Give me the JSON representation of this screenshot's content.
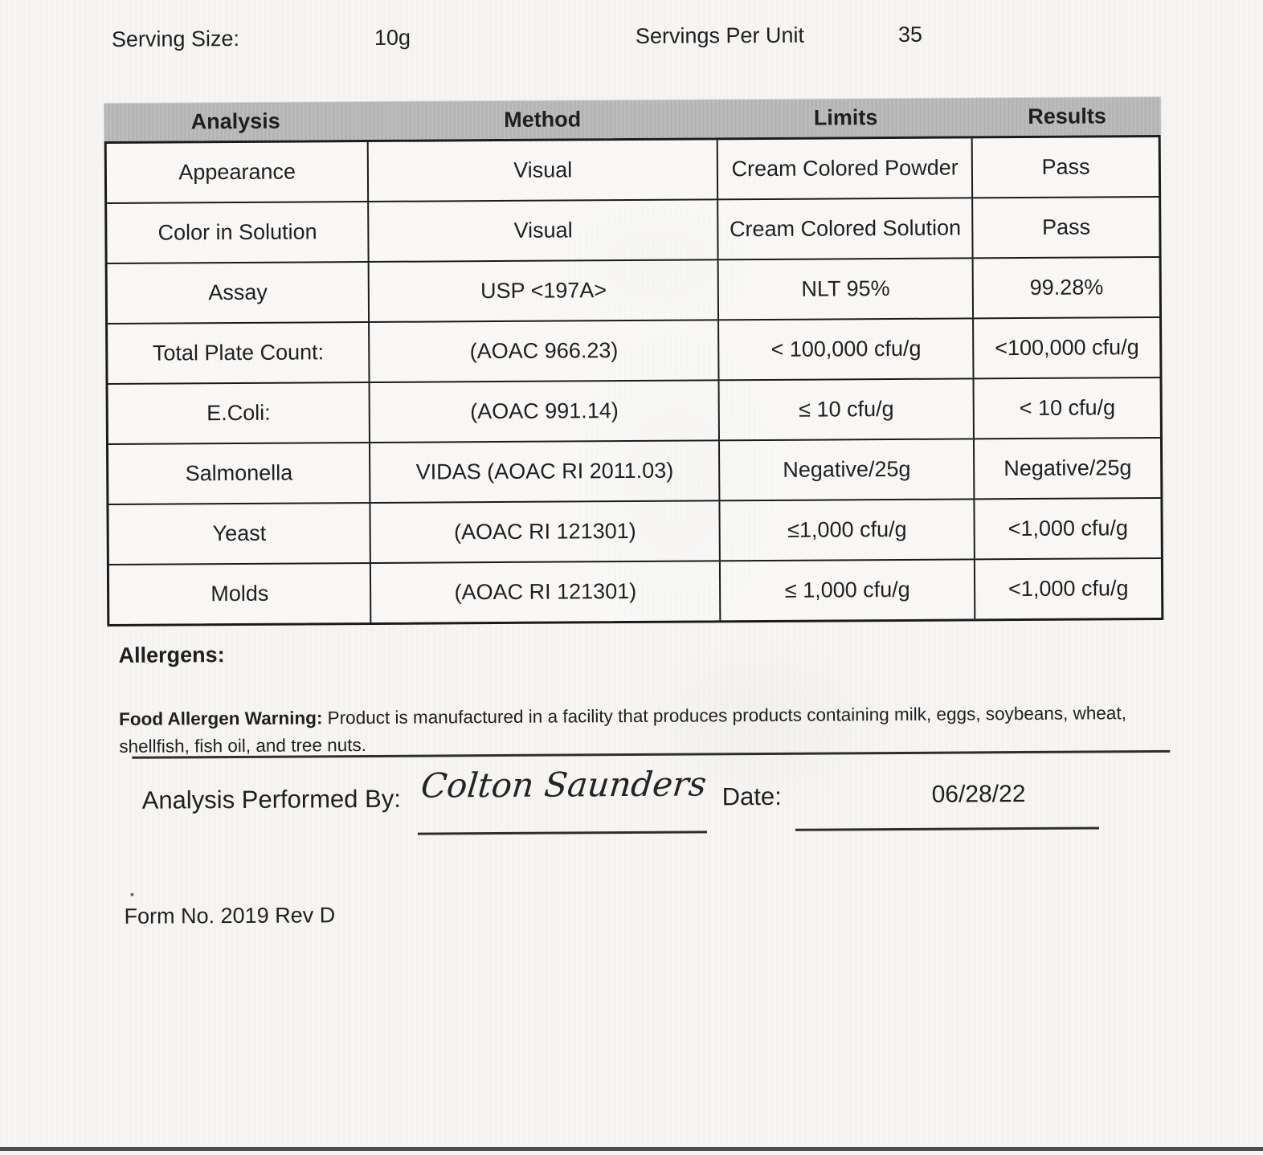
{
  "top": {
    "serving_size_label": "Serving Size:",
    "serving_size_value": "10g",
    "servings_per_unit_label": "Servings Per Unit",
    "servings_per_unit_value": "35"
  },
  "table": {
    "headers": [
      "Analysis",
      "Method",
      "Limits",
      "Results"
    ],
    "rows": [
      [
        "Appearance",
        "Visual",
        "Cream Colored Powder",
        "Pass"
      ],
      [
        "Color in Solution",
        "Visual",
        "Cream Colored Solution",
        "Pass"
      ],
      [
        "Assay",
        "USP <197A>",
        "NLT 95%",
        "99.28%"
      ],
      [
        "Total Plate Count:",
        "(AOAC 966.23)",
        "< 100,000 cfu/g",
        "<100,000 cfu/g"
      ],
      [
        "E.Coli:",
        "(AOAC 991.14)",
        "≤ 10 cfu/g",
        "< 10 cfu/g"
      ],
      [
        "Salmonella",
        "VIDAS (AOAC RI 2011.03)",
        "Negative/25g",
        "Negative/25g"
      ],
      [
        "Yeast",
        "(AOAC RI 121301)",
        "≤1,000 cfu/g",
        "<1,000 cfu/g"
      ],
      [
        "Molds",
        "(AOAC RI 121301)",
        "≤ 1,000 cfu/g",
        "<1,000 cfu/g"
      ]
    ]
  },
  "allergens": {
    "heading": "Allergens:",
    "warning_label": "Food Allergen Warning:",
    "warning_text": " Product is manufactured in a facility that produces products containing milk, eggs, soybeans, wheat, shellfish, fish oil, and tree nuts."
  },
  "signature": {
    "performed_by_label": "Analysis Performed By:",
    "performed_by_value": "Colton Saunders",
    "date_label": "Date:",
    "date_value": "06/28/22"
  },
  "footer": {
    "form_number": "Form No. 2019 Rev D"
  },
  "colors": {
    "table_header_bg": "#bcbcbc",
    "border": "#1b1b1b",
    "paper": "#f6f5f3"
  }
}
